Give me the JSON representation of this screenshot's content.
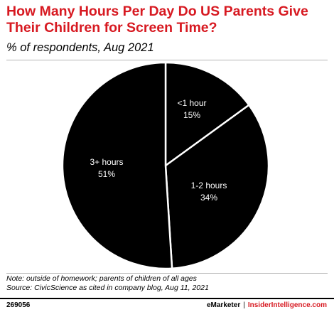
{
  "header": {
    "title": "How Many Hours Per Day Do US Parents Give Their Children for Screen Time?",
    "subtitle": "% of respondents, Aug 2021"
  },
  "footer": {
    "note": "Note: outside of homework; parents of children of all ages",
    "source": "Source: CivicScience as cited in company blog, Aug 11, 2021",
    "chart_id": "269056",
    "brand_left": "eMarketer",
    "brand_sep": "|",
    "brand_right": "InsiderIntelligence.com"
  },
  "colors": {
    "title": "#d71921",
    "slice_fill": "#000000",
    "slice_edge": "#ffffff",
    "label": "#ffffff",
    "rule": "#b4b4b4"
  },
  "chart_data": {
    "type": "pie",
    "title": "How Many Hours Per Day Do US Parents Give Their Children for Screen Time?",
    "subtitle": "% of respondents, Aug 2021",
    "unit": "%",
    "start": "12 o'clock",
    "direction": "clockwise",
    "slices": [
      {
        "label": "<1 hour",
        "value": 15,
        "value_label": "15%"
      },
      {
        "label": "1-2 hours",
        "value": 34,
        "value_label": "34%"
      },
      {
        "label": "3+ hours",
        "value": 51,
        "value_label": "51%"
      }
    ]
  }
}
